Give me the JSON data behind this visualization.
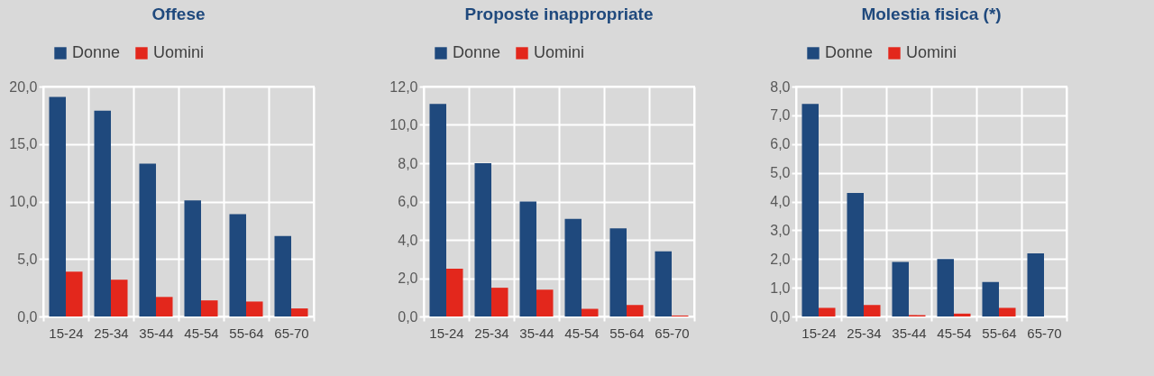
{
  "chart_data": [
    {
      "type": "bar",
      "title": "Offese",
      "categories": [
        "15-24",
        "25-34",
        "35-44",
        "45-54",
        "55-64",
        "65-70"
      ],
      "series": [
        {
          "name": "Donne",
          "color": "#1f497d",
          "values": [
            19.1,
            17.9,
            13.3,
            10.1,
            8.9,
            7.0
          ]
        },
        {
          "name": "Uomini",
          "color": "#e3271c",
          "values": [
            3.9,
            3.2,
            1.7,
            1.4,
            1.3,
            0.7
          ]
        }
      ],
      "ylim": [
        0,
        20
      ],
      "yticks": [
        {
          "value": 0,
          "label": "0,0"
        },
        {
          "value": 5,
          "label": "5,0"
        },
        {
          "value": 10,
          "label": "10,0"
        },
        {
          "value": 15,
          "label": "15,0"
        },
        {
          "value": 20,
          "label": "20,0"
        }
      ],
      "grid": true,
      "legend": "top"
    },
    {
      "type": "bar",
      "title": "Proposte inappropriate",
      "categories": [
        "15-24",
        "25-34",
        "35-44",
        "45-54",
        "55-64",
        "65-70"
      ],
      "series": [
        {
          "name": "Donne",
          "color": "#1f497d",
          "values": [
            11.1,
            8.0,
            6.0,
            5.1,
            4.6,
            3.4
          ]
        },
        {
          "name": "Uomini",
          "color": "#e3271c",
          "values": [
            2.5,
            1.5,
            1.4,
            0.4,
            0.6,
            0.05
          ]
        }
      ],
      "ylim": [
        0,
        12
      ],
      "yticks": [
        {
          "value": 0,
          "label": "0,0"
        },
        {
          "value": 2,
          "label": "2,0"
        },
        {
          "value": 4,
          "label": "4,0"
        },
        {
          "value": 6,
          "label": "6,0"
        },
        {
          "value": 8,
          "label": "8,0"
        },
        {
          "value": 10,
          "label": "10,0"
        },
        {
          "value": 12,
          "label": "12,0"
        }
      ],
      "grid": true,
      "legend": "top"
    },
    {
      "type": "bar",
      "title": "Molestia fisica (*)",
      "categories": [
        "15-24",
        "25-34",
        "35-44",
        "45-54",
        "55-64",
        "65-70"
      ],
      "series": [
        {
          "name": "Donne",
          "color": "#1f497d",
          "values": [
            7.4,
            4.3,
            1.9,
            2.0,
            1.2,
            2.2
          ]
        },
        {
          "name": "Uomini",
          "color": "#e3271c",
          "values": [
            0.3,
            0.4,
            0.05,
            0.1,
            0.3,
            null
          ]
        }
      ],
      "ylim": [
        0,
        8
      ],
      "yticks": [
        {
          "value": 0,
          "label": "0,0"
        },
        {
          "value": 1,
          "label": "1,0"
        },
        {
          "value": 2,
          "label": "2,0"
        },
        {
          "value": 3,
          "label": "3,0"
        },
        {
          "value": 4,
          "label": "4,0"
        },
        {
          "value": 5,
          "label": "5,0"
        },
        {
          "value": 6,
          "label": "6,0"
        },
        {
          "value": 7,
          "label": "7,0"
        },
        {
          "value": 8,
          "label": "8,0"
        }
      ],
      "grid": true,
      "legend": "top"
    }
  ]
}
